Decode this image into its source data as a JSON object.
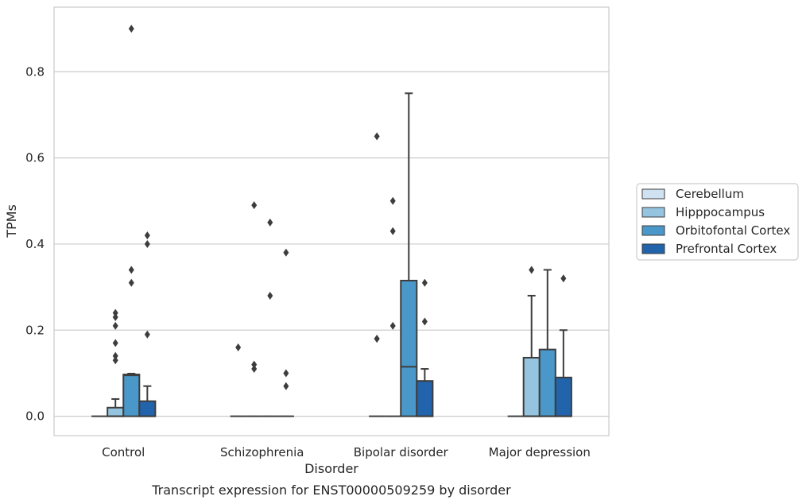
{
  "chart_data": {
    "type": "boxplot",
    "caption": "Transcript expression for ENST00000509259 by disorder",
    "xlabel": "Disorder",
    "ylabel": "TPMs",
    "ylim": [
      -0.045,
      0.95
    ],
    "yticks": [
      "0.0",
      "0.2",
      "0.4",
      "0.6",
      "0.8"
    ],
    "ytick_values": [
      0.0,
      0.2,
      0.4,
      0.6,
      0.8
    ],
    "grid": "horizontal",
    "legend_position": "right",
    "categories": [
      "Control",
      "Schizophrenia",
      "Bipolar disorder",
      "Major depression"
    ],
    "series": [
      {
        "name": "Cerebellum",
        "color": "#d0e1f2",
        "boxes": [
          {
            "q1": 0,
            "median": 0,
            "q3": 0,
            "whisker_low": 0,
            "whisker_high": 0,
            "outliers": []
          },
          {
            "q1": 0,
            "median": 0,
            "q3": 0,
            "whisker_low": 0,
            "whisker_high": 0,
            "outliers": [
              0.16
            ]
          },
          {
            "q1": 0,
            "median": 0,
            "q3": 0,
            "whisker_low": 0,
            "whisker_high": 0,
            "outliers": [
              0.18,
              0.18,
              0.65
            ]
          },
          {
            "q1": 0,
            "median": 0,
            "q3": 0,
            "whisker_low": 0,
            "whisker_high": 0,
            "outliers": []
          }
        ]
      },
      {
        "name": "Hipppocampus",
        "color": "#94c4df",
        "boxes": [
          {
            "q1": 0,
            "median": 0,
            "q3": 0.02,
            "whisker_low": 0,
            "whisker_high": 0.04,
            "outliers": [
              0.13,
              0.14,
              0.17,
              0.21,
              0.23,
              0.24
            ]
          },
          {
            "q1": 0,
            "median": 0,
            "q3": 0,
            "whisker_low": 0,
            "whisker_high": 0,
            "outliers": [
              0.11,
              0.12,
              0.49
            ]
          },
          {
            "q1": 0,
            "median": 0,
            "q3": 0,
            "whisker_low": 0,
            "whisker_high": 0,
            "outliers": [
              0.21,
              0.43,
              0.5
            ]
          },
          {
            "q1": 0,
            "median": 0,
            "q3": 0.136,
            "whisker_low": 0,
            "whisker_high": 0.28,
            "outliers": [
              0.34
            ]
          }
        ]
      },
      {
        "name": "Orbitofontal Cortex",
        "color": "#4a98c9",
        "boxes": [
          {
            "q1": 0,
            "median": 0.095,
            "q3": 0.097,
            "whisker_low": 0,
            "whisker_high": 0.099,
            "outliers": [
              0.31,
              0.34,
              0.9
            ]
          },
          {
            "q1": 0,
            "median": 0,
            "q3": 0,
            "whisker_low": 0,
            "whisker_high": 0,
            "outliers": [
              0.28,
              0.45
            ]
          },
          {
            "q1": 0,
            "median": 0.115,
            "q3": 0.315,
            "whisker_low": 0,
            "whisker_high": 0.75,
            "outliers": []
          },
          {
            "q1": 0,
            "median": 0,
            "q3": 0.155,
            "whisker_low": 0,
            "whisker_high": 0.34,
            "outliers": []
          }
        ]
      },
      {
        "name": "Prefrontal Cortex",
        "color": "#2164ab",
        "boxes": [
          {
            "q1": 0,
            "median": 0,
            "q3": 0.035,
            "whisker_low": 0,
            "whisker_high": 0.07,
            "outliers": [
              0.19,
              0.4,
              0.42
            ]
          },
          {
            "q1": 0,
            "median": 0,
            "q3": 0,
            "whisker_low": 0,
            "whisker_high": 0,
            "outliers": [
              0.07,
              0.1,
              0.38
            ]
          },
          {
            "q1": 0,
            "median": 0,
            "q3": 0.082,
            "whisker_low": 0,
            "whisker_high": 0.11,
            "outliers": [
              0.22,
              0.31
            ]
          },
          {
            "q1": 0,
            "median": 0,
            "q3": 0.09,
            "whisker_low": 0,
            "whisker_high": 0.2,
            "outliers": [
              0.32
            ]
          }
        ]
      }
    ]
  }
}
